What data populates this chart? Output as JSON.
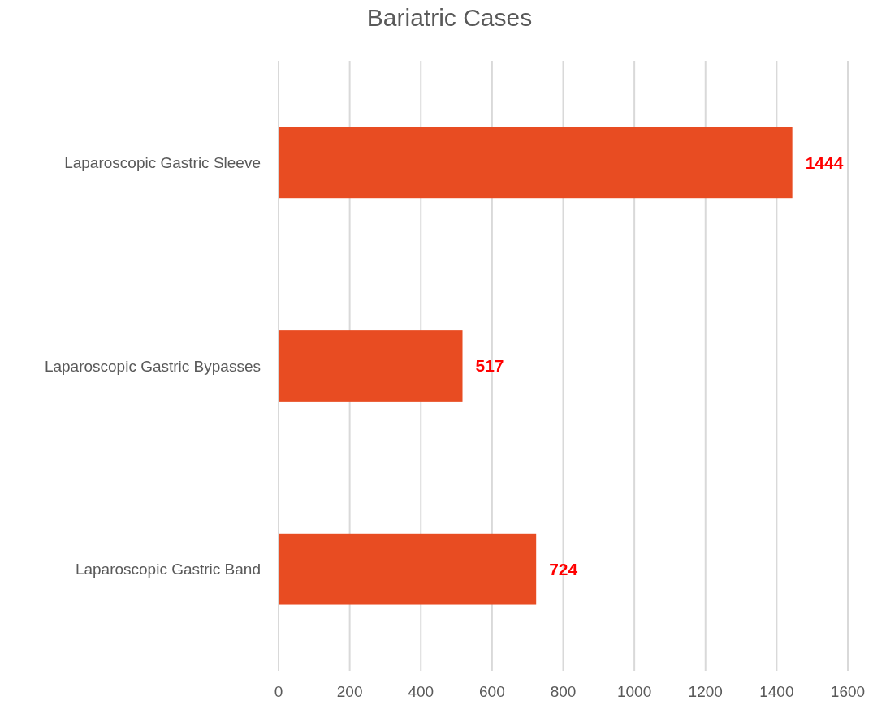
{
  "chart_data": {
    "type": "bar",
    "title": "Bariatric Cases",
    "orientation": "horizontal",
    "categories": [
      "Laparoscopic Gastric Sleeve",
      "Laparoscopic Gastric Bypasses",
      "Laparoscopic Gastric Band"
    ],
    "values": [
      1444,
      517,
      724
    ],
    "color": "#e84c22",
    "xlim": [
      0,
      1600
    ],
    "xticks": [
      0,
      200,
      400,
      600,
      800,
      1000,
      1200,
      1400,
      1600
    ],
    "grid": "x",
    "data_labels": true
  }
}
